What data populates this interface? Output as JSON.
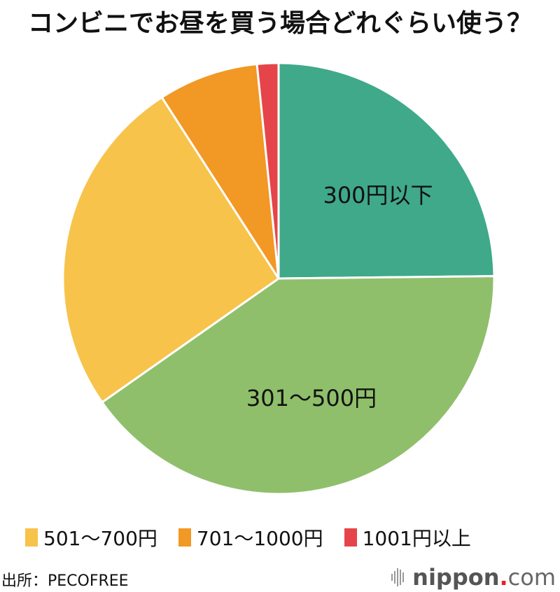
{
  "title": "コンビニでお昼を買う場合どれぐらい使う？",
  "chart_data": {
    "type": "pie",
    "title": "コンビニでお昼を買う場合どれぐらい使う？",
    "start_angle_deg": 0,
    "direction": "clockwise",
    "categories": [
      "300円以下",
      "301〜500円",
      "501〜700円",
      "701〜1000円",
      "1001円以上"
    ],
    "values": [
      24.8,
      40.4,
      25.6,
      7.5,
      1.6
    ],
    "unit": "% (estimated from slice angles; no values shown)",
    "colors": [
      "#3fa98a",
      "#8fbf6b",
      "#f7c34b",
      "#f29825",
      "#e5454a"
    ],
    "inline_labels": [
      "300円以下",
      "301〜500円"
    ],
    "legend_entries": [
      "501〜700円",
      "701〜1000円",
      "1001円以上"
    ],
    "legend_position": "bottom"
  },
  "legend": [
    {
      "label": "501〜700円",
      "color": "#f7c34b"
    },
    {
      "label": "701〜1000円",
      "color": "#f29825"
    },
    {
      "label": "1001円以上",
      "color": "#e5454a"
    }
  ],
  "source": "出所：PECOFREE",
  "brand": {
    "name": "nippon",
    "dot": ".",
    "suffix": "com"
  }
}
